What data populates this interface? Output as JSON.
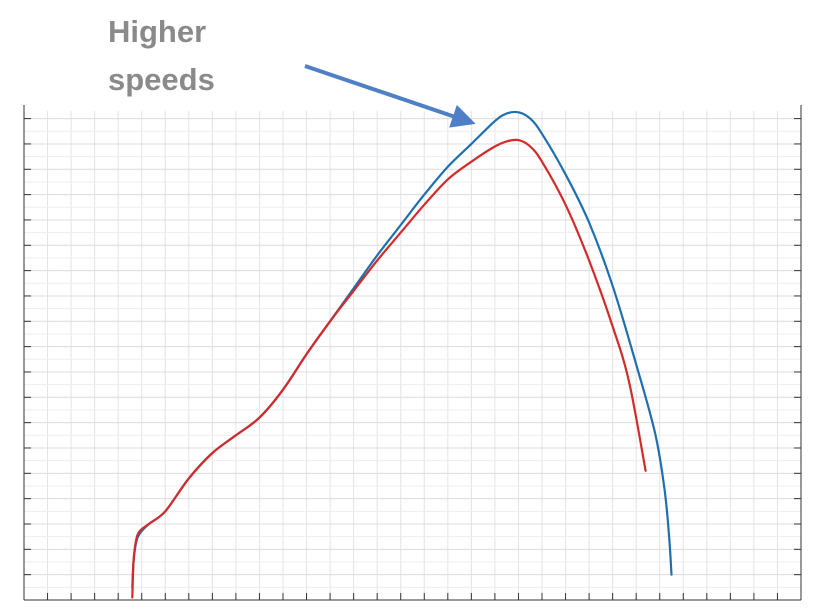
{
  "annotation": {
    "line1": "Higher",
    "line2": "speeds",
    "arrow_color": "#4f7fc6",
    "text_color": "#8a8a8a"
  },
  "chart_data": {
    "type": "line",
    "title": "",
    "xlabel": "",
    "ylabel": "",
    "xlim": [
      0,
      33
    ],
    "ylim": [
      0,
      19.3
    ],
    "grid": true,
    "tick_labels_shown": false,
    "legend": "none",
    "series": [
      {
        "color": "#1f6fb0",
        "points": [
          [
            4.6,
            0.5
          ],
          [
            4.65,
            1.5
          ],
          [
            4.75,
            2.2
          ],
          [
            4.9,
            2.6
          ],
          [
            5.3,
            3.0
          ],
          [
            6.0,
            3.5
          ],
          [
            7.0,
            4.8
          ],
          [
            8.0,
            5.8
          ],
          [
            9.0,
            6.5
          ],
          [
            10.0,
            7.2
          ],
          [
            11.0,
            8.3
          ],
          [
            12.0,
            9.7
          ],
          [
            13.0,
            11.0
          ],
          [
            14.0,
            12.3
          ],
          [
            15.0,
            13.6
          ],
          [
            16.0,
            14.8
          ],
          [
            17.0,
            16.0
          ],
          [
            18.0,
            17.1
          ],
          [
            19.0,
            18.0
          ],
          [
            20.0,
            18.9
          ],
          [
            20.5,
            19.2
          ],
          [
            21.0,
            19.25
          ],
          [
            21.5,
            19.0
          ],
          [
            22.0,
            18.4
          ],
          [
            23.0,
            16.8
          ],
          [
            24.0,
            14.9
          ],
          [
            25.0,
            12.4
          ],
          [
            26.0,
            9.3
          ],
          [
            26.8,
            6.6
          ],
          [
            27.2,
            4.4
          ],
          [
            27.4,
            2.5
          ],
          [
            27.5,
            1.0
          ]
        ]
      },
      {
        "color": "#d42a2a",
        "points": [
          [
            4.6,
            0.1
          ],
          [
            4.65,
            1.5
          ],
          [
            4.75,
            2.3
          ],
          [
            4.9,
            2.7
          ],
          [
            5.3,
            3.0
          ],
          [
            6.0,
            3.5
          ],
          [
            7.0,
            4.8
          ],
          [
            8.0,
            5.8
          ],
          [
            9.0,
            6.5
          ],
          [
            10.0,
            7.2
          ],
          [
            11.0,
            8.3
          ],
          [
            12.0,
            9.7
          ],
          [
            13.0,
            11.0
          ],
          [
            14.0,
            12.2
          ],
          [
            15.0,
            13.4
          ],
          [
            16.0,
            14.5
          ],
          [
            17.0,
            15.6
          ],
          [
            18.0,
            16.6
          ],
          [
            19.0,
            17.3
          ],
          [
            20.0,
            17.9
          ],
          [
            20.5,
            18.1
          ],
          [
            21.0,
            18.15
          ],
          [
            21.5,
            17.9
          ],
          [
            22.0,
            17.3
          ],
          [
            23.0,
            15.6
          ],
          [
            24.0,
            13.4
          ],
          [
            25.0,
            10.8
          ],
          [
            25.7,
            8.6
          ],
          [
            26.4,
            5.1
          ]
        ]
      }
    ]
  }
}
